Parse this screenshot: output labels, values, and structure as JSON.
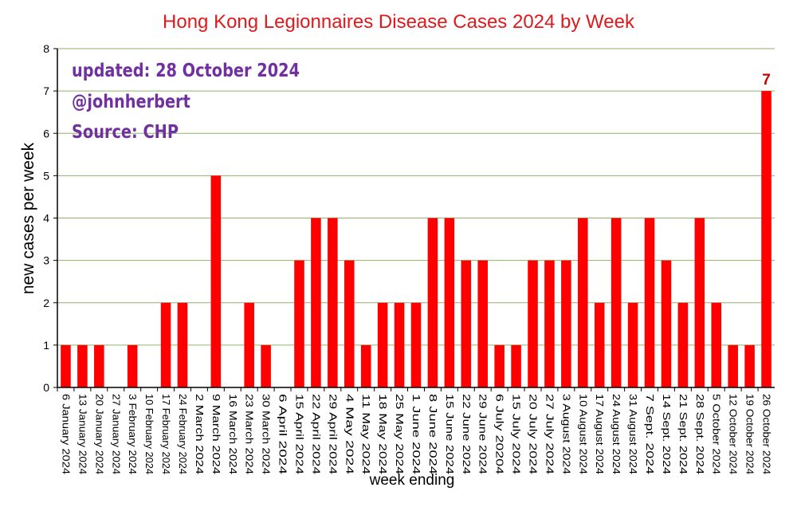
{
  "colors": {
    "bar": "#ff0000",
    "title": "#e0191c",
    "annotation": "#7030a0",
    "grid": "#8fb36a",
    "last_label": "#cc0000"
  },
  "annotations": {
    "updated": "updated: 28 October 2024",
    "handle": "@johnherbert",
    "source": "Source: CHP"
  },
  "chart_data": {
    "type": "bar",
    "title": "Hong Kong Legionnaires Disease Cases 2024 by Week",
    "xlabel": "week ending",
    "ylabel": "new cases per week",
    "ylim": [
      0,
      8
    ],
    "yticks": [
      0,
      1,
      2,
      3,
      4,
      5,
      6,
      7,
      8
    ],
    "grid": true,
    "categories": [
      "6 January 2024",
      "13 January 2024",
      "20 January 2024",
      "27 January 2024",
      "3 February 2024",
      "10 February 2024",
      "17 February 2024",
      "24 February 2024",
      "2 March 2024",
      "9 March 2024",
      "16 March 2024",
      "23 March 2024",
      "30 March 2024",
      "6 April 2024",
      "15 April 2024",
      "22 April 2024",
      "29 April 2024",
      "4 May 2024",
      "11 May 2024",
      "18 May 2024",
      "25 May 2024",
      "1 June 2024",
      "8 June 2024",
      "15 June 2024",
      "22 June 2024",
      "29 June 2024",
      "6 July 20204",
      "15 July 2024",
      "20 July 2024",
      "27 July 2024",
      "3 August 2024",
      "10 August 2024",
      "17 August 2024",
      "24 August 2024",
      "31 August 2024",
      "7 Sept. 2024",
      "14 Sept. 2024",
      "21 Sept. 2024",
      "28 Sept. 2024",
      "5 October 2024",
      "12 October 2024",
      "19 October 2024",
      "26 October 2024"
    ],
    "values": [
      1,
      1,
      1,
      0,
      1,
      0,
      2,
      2,
      0,
      5,
      0,
      2,
      1,
      0,
      3,
      4,
      4,
      3,
      1,
      2,
      2,
      2,
      4,
      4,
      3,
      3,
      1,
      1,
      3,
      3,
      3,
      4,
      2,
      4,
      2,
      4,
      3,
      2,
      4,
      2,
      1,
      1,
      7
    ],
    "data_labels": [
      {
        "index": 42,
        "text": "7"
      }
    ]
  }
}
